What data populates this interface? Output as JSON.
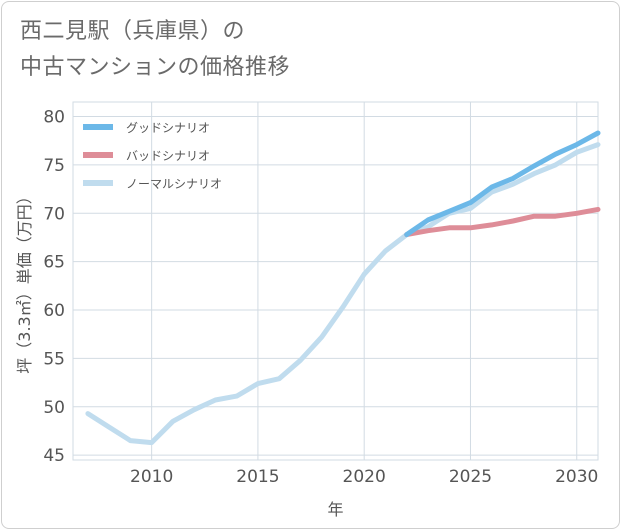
{
  "title_line1": "西二見駅（兵庫県）の",
  "title_line2": "中古マンションの価格推移",
  "chart_data": {
    "type": "line",
    "xlabel": "年",
    "ylabel": "坪（3.3㎡）単価（万円）",
    "xlim": [
      2006.3,
      2031
    ],
    "ylim": [
      44.5,
      81.5
    ],
    "x_ticks": [
      2010,
      2015,
      2020,
      2025,
      2030
    ],
    "y_ticks": [
      45,
      50,
      55,
      60,
      65,
      70,
      75,
      80
    ],
    "grid": true,
    "legend_position": "top-left",
    "series": [
      {
        "name": "グッドシナリオ",
        "color": "#6cb8e8",
        "x": [
          2022,
          2023,
          2024,
          2025,
          2026,
          2027,
          2028,
          2029,
          2030,
          2031
        ],
        "y": [
          67.8,
          69.3,
          70.2,
          71.1,
          72.7,
          73.6,
          74.9,
          76.1,
          77.1,
          78.3
        ]
      },
      {
        "name": "バッドシナリオ",
        "color": "#de8d98",
        "x": [
          2022,
          2023,
          2024,
          2025,
          2026,
          2027,
          2028,
          2029,
          2030,
          2031
        ],
        "y": [
          67.8,
          68.2,
          68.5,
          68.5,
          68.8,
          69.2,
          69.7,
          69.7,
          70.0,
          70.4
        ]
      },
      {
        "name": "ノーマルシナリオ",
        "color": "#c0dcee",
        "x": [
          2007,
          2008,
          2009,
          2010,
          2011,
          2012,
          2013,
          2014,
          2015,
          2016,
          2017,
          2018,
          2019,
          2020,
          2021,
          2022,
          2023,
          2024,
          2025,
          2026,
          2027,
          2028,
          2029,
          2030,
          2031
        ],
        "y": [
          49.3,
          47.9,
          46.5,
          46.3,
          48.5,
          49.7,
          50.7,
          51.1,
          52.4,
          52.9,
          54.8,
          57.2,
          60.3,
          63.7,
          66.1,
          67.8,
          68.6,
          70.0,
          70.5,
          72.2,
          73.0,
          74.1,
          75.0,
          76.3,
          77.1
        ]
      }
    ]
  }
}
